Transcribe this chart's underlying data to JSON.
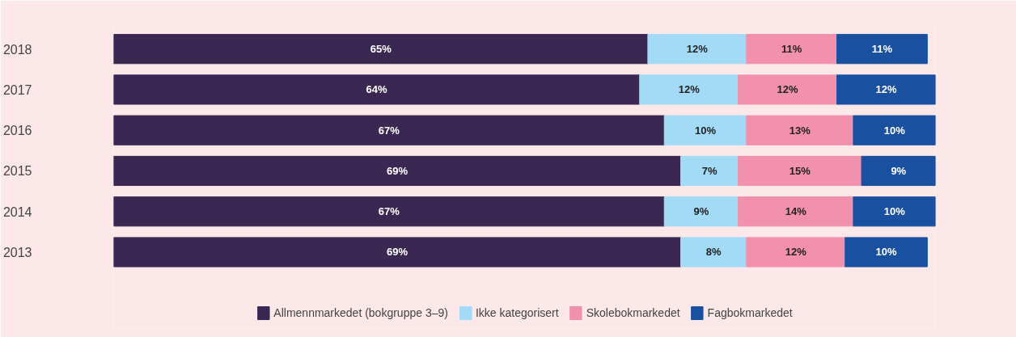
{
  "chart_data": {
    "type": "bar",
    "orientation": "horizontal",
    "stacked": true,
    "legend": "bottom",
    "grid": false,
    "categories": [
      "2018",
      "2017",
      "2016",
      "2015",
      "2014",
      "2013"
    ],
    "series": [
      {
        "name": "Allmennmarkedet (bokgruppe 3–9)",
        "color": "#3a2852",
        "values": [
          65,
          64,
          67,
          69,
          67,
          69
        ],
        "value_labels": [
          "65%",
          "64%",
          "67%",
          "69%",
          "67%",
          "69%"
        ]
      },
      {
        "name": "Ikke kategorisert",
        "color": "#a3dbf7",
        "values": [
          12,
          12,
          10,
          7,
          9,
          8
        ],
        "value_labels": [
          "12%",
          "12%",
          "10%",
          "7%",
          "9%",
          "8%"
        ]
      },
      {
        "name": "Skolebokmarkedet",
        "color": "#f191ae",
        "values": [
          11,
          12,
          13,
          15,
          14,
          12
        ],
        "value_labels": [
          "11%",
          "12%",
          "13%",
          "15%",
          "14%",
          "12%"
        ]
      },
      {
        "name": "Fagbokmarkedet",
        "color": "#1a50a0",
        "values": [
          11,
          12,
          10,
          9,
          10,
          10
        ],
        "value_labels": [
          "11%",
          "12%",
          "10%",
          "9%",
          "10%",
          "10%"
        ]
      }
    ]
  }
}
